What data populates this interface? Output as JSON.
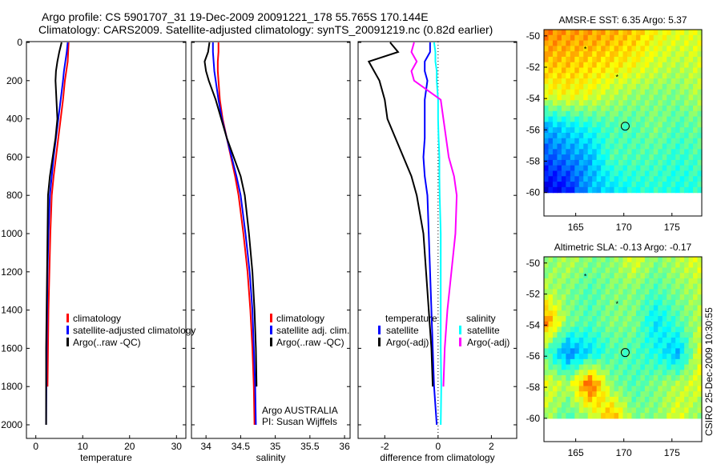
{
  "header": {
    "line1": "Argo profile: CS 5901707_31 19-Dec-2009 20091221_178 55.765S 170.144E",
    "line2": "Climatology: CARS2009. Satellite-adjusted climatology: synTS_20091219.nc (0.82d earlier)"
  },
  "stamp": "CSIRO 25-Dec-2009 10:30:55",
  "credit": {
    "line1": "Argo AUSTRALIA",
    "line2": "PI: Susan Wijffels"
  },
  "colors": {
    "clim": "#ff0000",
    "sat": "#0000ff",
    "argo": "#000000",
    "salsat": "#00ffff",
    "salargo": "#ff00ff"
  },
  "chart_data": [
    {
      "type": "line",
      "id": "temp",
      "xlabel": "temperature",
      "xlim": [
        -2,
        32
      ],
      "ylim": [
        0,
        2000
      ],
      "reverse_y": true,
      "xticks": [
        0,
        10,
        20,
        30
      ],
      "yticks": [
        0,
        200,
        400,
        600,
        800,
        1000,
        1200,
        1400,
        1600,
        1800,
        2000
      ],
      "depth": [
        0,
        50,
        100,
        150,
        200,
        300,
        400,
        500,
        600,
        700,
        800,
        1000,
        1200,
        1400,
        1600,
        1800,
        2000
      ],
      "legend": [
        "climatology",
        "satellite-adjusted climatology",
        "Argo(..raw -QC)"
      ],
      "series": [
        {
          "name": "climatology",
          "color": "clim",
          "values": [
            7,
            6.9,
            6.8,
            6.5,
            6.2,
            5.8,
            5.3,
            4.8,
            4.3,
            3.8,
            3.4,
            3.1,
            2.9,
            2.7,
            2.6,
            2.5,
            null
          ]
        },
        {
          "name": "satellite-adjusted climatology",
          "color": "sat",
          "values": [
            6.8,
            6.6,
            6.3,
            6.0,
            5.8,
            5.3,
            4.8,
            4.3,
            3.8,
            3.4,
            3.0,
            2.7,
            2.5,
            2.4,
            2.3,
            2.25,
            2.2
          ]
        },
        {
          "name": "Argo(..raw -QC)",
          "color": "argo",
          "values": [
            5.5,
            5.0,
            4.6,
            4.3,
            4.2,
            4.4,
            4.6,
            4.2,
            3.6,
            3.0,
            2.6,
            2.5,
            2.4,
            2.3,
            2.2,
            2.2,
            2.2
          ]
        }
      ]
    },
    {
      "type": "line",
      "id": "sal",
      "xlabel": "salinity",
      "xlim": [
        33.79,
        36.08
      ],
      "ylim": [
        0,
        2000
      ],
      "reverse_y": true,
      "xticks": [
        34,
        34.5,
        35,
        35.5,
        36
      ],
      "yticks": [
        0,
        200,
        400,
        600,
        800,
        1000,
        1200,
        1400,
        1600,
        1800,
        2000
      ],
      "depth": [
        0,
        50,
        100,
        150,
        200,
        300,
        400,
        500,
        600,
        700,
        800,
        1000,
        1200,
        1400,
        1600,
        1800,
        2000
      ],
      "legend": [
        "climatology",
        "satellite adj. clim.",
        "Argo(..raw -QC)"
      ],
      "series": [
        {
          "name": "climatology",
          "color": "clim",
          "values": [
            34.18,
            34.18,
            34.17,
            34.17,
            34.18,
            34.2,
            34.24,
            34.3,
            34.36,
            34.42,
            34.47,
            34.54,
            34.6,
            34.64,
            34.67,
            34.69,
            34.7
          ]
        },
        {
          "name": "satellite adj. clim.",
          "color": "sat",
          "values": [
            34.1,
            34.1,
            34.11,
            34.12,
            34.14,
            34.18,
            34.23,
            34.3,
            34.37,
            34.44,
            34.5,
            34.57,
            34.63,
            34.67,
            34.69,
            34.71,
            34.72
          ]
        },
        {
          "name": "Argo(..raw -QC)",
          "color": "argo",
          "values": [
            34.05,
            34.03,
            33.98,
            34.0,
            34.04,
            34.14,
            34.22,
            34.3,
            34.4,
            34.5,
            34.56,
            34.62,
            34.67,
            34.7,
            34.72,
            34.73,
            null
          ]
        }
      ]
    },
    {
      "type": "line",
      "id": "diff",
      "xlabel": "difference from climatology",
      "xlim": [
        -3,
        2.95
      ],
      "ylim": [
        0,
        2000
      ],
      "reverse_y": true,
      "xticks": [
        -2,
        0,
        2
      ],
      "yticks": [
        0,
        200,
        400,
        600,
        800,
        1000,
        1200,
        1400,
        1600,
        1800,
        2000
      ],
      "depth": [
        0,
        50,
        100,
        150,
        200,
        300,
        400,
        500,
        600,
        700,
        800,
        1000,
        1200,
        1400,
        1600,
        1800,
        2000
      ],
      "legend_titles": [
        "temperature",
        "salinity"
      ],
      "legend": [
        "satellite",
        "Argo(-adj)",
        "satellite",
        "Argo(-adj)"
      ],
      "series": [
        {
          "name": "temperature satellite",
          "color": "sat",
          "values": [
            -0.3,
            -0.3,
            -0.5,
            -0.5,
            -0.4,
            -0.5,
            -0.5,
            -0.5,
            -0.55,
            -0.5,
            -0.4,
            -0.35,
            -0.3,
            -0.25,
            -0.2,
            -0.15,
            -0.05
          ]
        },
        {
          "name": "temperature Argo(-adj)",
          "color": "argo",
          "values": [
            -1.8,
            -1.5,
            -2.6,
            -2.4,
            -2.2,
            -2.0,
            -1.9,
            -1.6,
            -1.3,
            -1.0,
            -0.8,
            -0.55,
            -0.45,
            -0.35,
            -0.25,
            -0.2,
            null
          ]
        },
        {
          "name": "salinity satellite",
          "color": "salsat",
          "values": [
            -0.15,
            -0.1,
            -0.1,
            -0.05,
            -0.05,
            0,
            0,
            0.02,
            0.05,
            0.05,
            0.06,
            0.1,
            0.1,
            0.1,
            0.1,
            0.12,
            0.1
          ]
        },
        {
          "name": "salinity Argo(-adj)",
          "color": "salargo",
          "values": [
            -0.9,
            -1.0,
            -0.8,
            -1.0,
            -0.9,
            0.1,
            0.2,
            0.3,
            0.4,
            0.6,
            0.7,
            0.65,
            0.5,
            0.35,
            0.25,
            0.2,
            null
          ]
        }
      ]
    },
    {
      "type": "heatmap",
      "id": "sst",
      "title": "AMSR-E SST: 6.35 Argo: 5.37",
      "xlim": [
        161.7,
        178.1
      ],
      "ylim": [
        -61.5,
        -49.6
      ],
      "data_lon": [
        161.7,
        178.1
      ],
      "data_lat": [
        -60,
        -49.6
      ],
      "xticks": [
        165,
        170,
        175
      ],
      "yticks": [
        -50,
        -52,
        -54,
        -56,
        -58,
        -60
      ],
      "grid": [
        [
          0.75,
          0.72,
          0.72,
          0.7,
          0.68,
          0.62,
          0.6,
          0.6
        ],
        [
          0.68,
          0.68,
          0.66,
          0.65,
          0.62,
          0.58,
          0.55,
          0.58
        ],
        [
          0.6,
          0.62,
          0.6,
          0.55,
          0.52,
          0.5,
          0.5,
          0.55
        ],
        [
          0.3,
          0.35,
          0.4,
          0.45,
          0.45,
          0.5,
          0.45,
          0.48
        ],
        [
          0.2,
          0.25,
          0.3,
          0.45,
          0.45,
          0.45,
          0.42,
          0.45
        ],
        [
          0.1,
          0.15,
          0.3,
          0.35,
          0.4,
          0.42,
          0.4,
          0.42
        ]
      ],
      "stars": [
        [
          166,
          -50.8
        ],
        [
          169.3,
          -52.6
        ]
      ],
      "profile": [
        170.144,
        -55.765
      ]
    },
    {
      "type": "heatmap",
      "id": "sla",
      "title": "Altimetric SLA: -0.13 Argo: -0.17",
      "xlim": [
        161.7,
        178.1
      ],
      "ylim": [
        -61.5,
        -49.6
      ],
      "data_lon": [
        161.7,
        178.1
      ],
      "data_lat": [
        -60,
        -49.6
      ],
      "xticks": [
        165,
        170,
        175
      ],
      "yticks": [
        -50,
        -52,
        -54,
        -56,
        -58,
        -60
      ],
      "grid": [
        [
          0.5,
          0.55,
          0.5,
          0.5,
          0.6,
          0.5,
          0.55,
          0.6
        ],
        [
          0.55,
          0.5,
          0.45,
          0.5,
          0.5,
          0.45,
          0.5,
          0.55
        ],
        [
          0.75,
          0.5,
          0.45,
          0.5,
          0.5,
          0.35,
          0.45,
          0.55
        ],
        [
          0.45,
          0.25,
          0.35,
          0.45,
          0.45,
          0.4,
          0.3,
          0.6
        ],
        [
          0.6,
          0.55,
          0.8,
          0.5,
          0.45,
          0.5,
          0.55,
          0.6
        ],
        [
          0.55,
          0.45,
          0.55,
          0.7,
          0.5,
          0.5,
          0.6,
          0.5
        ]
      ],
      "stars": [
        [
          166,
          -50.8
        ],
        [
          169.3,
          -52.6
        ]
      ],
      "profile": [
        170.144,
        -55.765
      ]
    }
  ]
}
